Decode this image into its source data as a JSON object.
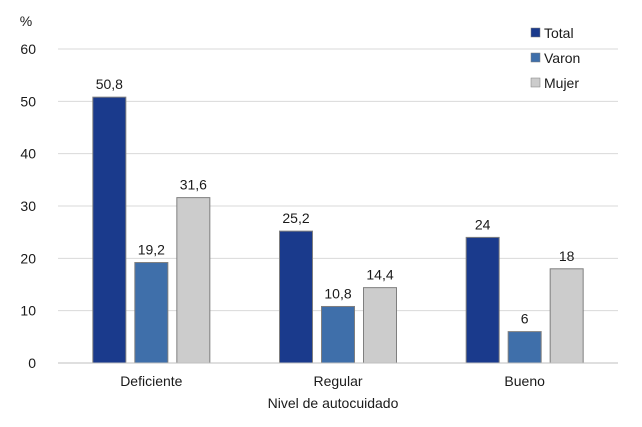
{
  "chart_data": {
    "type": "bar",
    "ylabel": "%",
    "xlabel": "Nivel de autocuidado",
    "ylim": [
      0,
      60
    ],
    "yticks": [
      0,
      10,
      20,
      30,
      40,
      50,
      60
    ],
    "grid": true,
    "legend": "top-right",
    "categories": [
      "Deficiente",
      "Regular",
      "Bueno"
    ],
    "series": [
      {
        "name": "Total",
        "color": "#1a3a8c",
        "values": [
          50.8,
          25.2,
          24
        ],
        "labels": [
          "50,8",
          "25,2",
          "24"
        ]
      },
      {
        "name": "Varon",
        "color": "#3f6faa",
        "values": [
          19.2,
          10.8,
          6
        ],
        "labels": [
          "19,2",
          "10,8",
          "6"
        ]
      },
      {
        "name": "Mujer",
        "color": "#cccccc",
        "values": [
          31.6,
          14.4,
          18
        ],
        "labels": [
          "31,6",
          "14,4",
          "18"
        ]
      }
    ]
  }
}
